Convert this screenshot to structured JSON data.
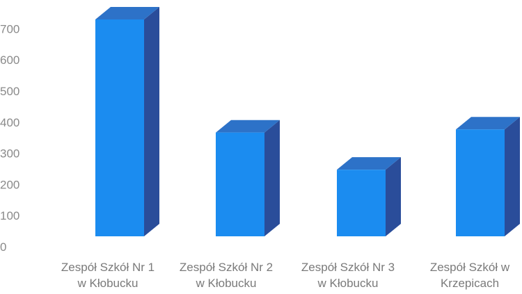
{
  "chart_data": {
    "type": "bar",
    "style": "3d-column",
    "categories": [
      [
        "Zespół Szkół Nr 1",
        "w Kłobucku"
      ],
      [
        "Zespół Szkół Nr 2",
        "w Kłobucku"
      ],
      [
        "Zespół Szkół Nr 3",
        "w Kłobucku"
      ],
      [
        "Zespół Szkół w",
        "Krzepicach"
      ]
    ],
    "values": [
      700,
      335,
      215,
      345
    ],
    "ylim": [
      0,
      700
    ],
    "yticks": [
      0,
      100,
      200,
      300,
      400,
      500,
      600,
      700
    ],
    "grid": false,
    "legend": "none",
    "colors": {
      "front": "#1b8cf0",
      "top": "#2d72c8",
      "side": "#2a4d9a",
      "tick_text": "#8a8a8a",
      "category_text": "#7a7a7a"
    }
  }
}
